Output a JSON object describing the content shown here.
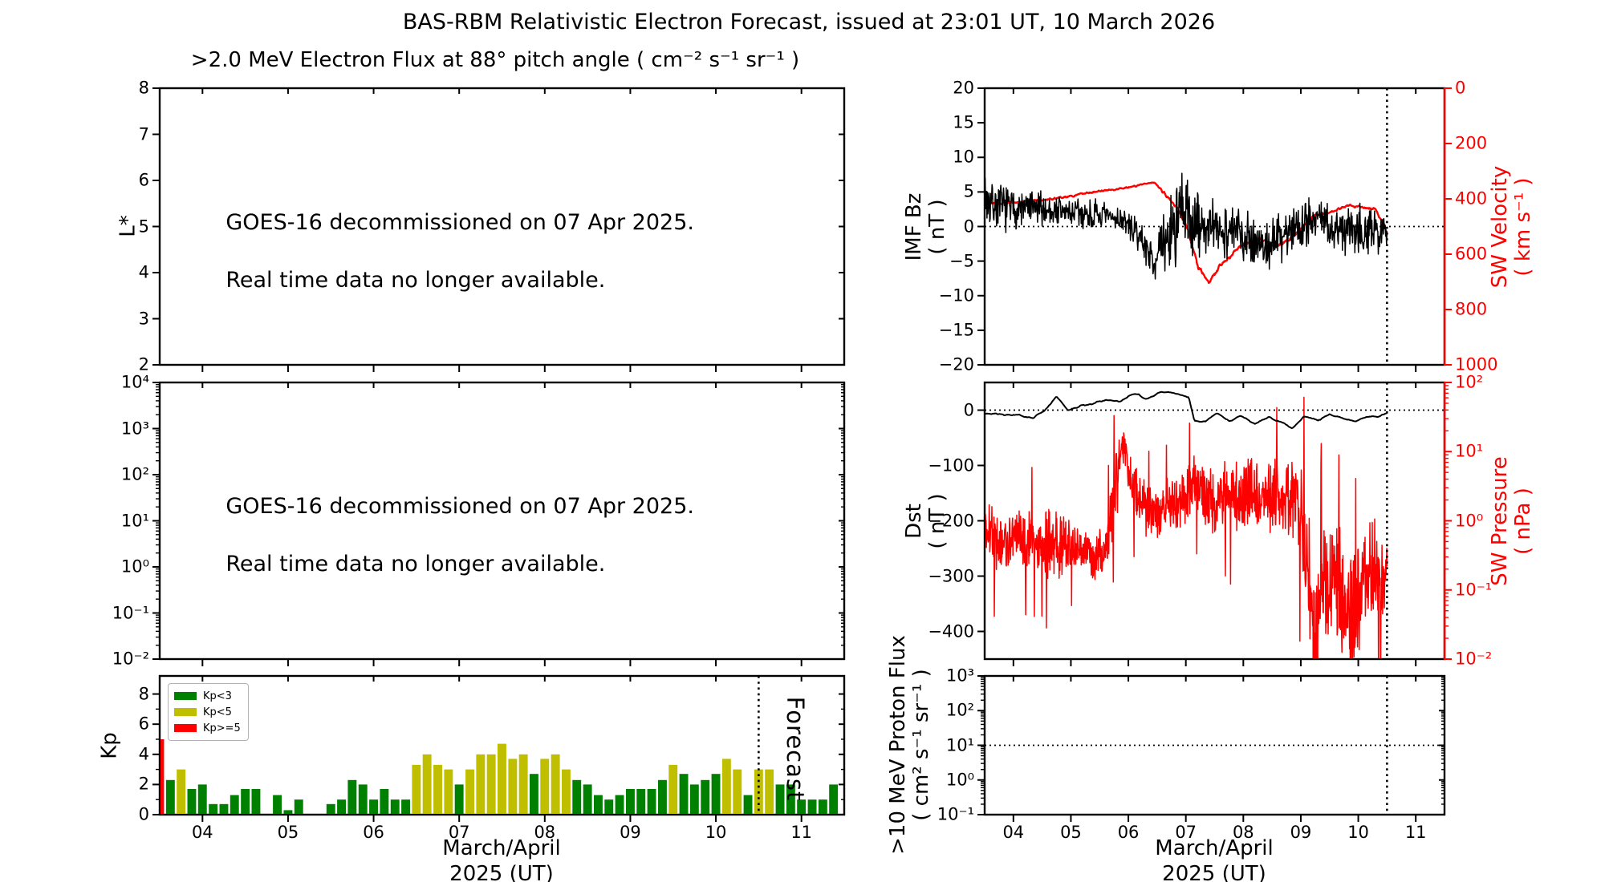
{
  "title": "BAS-RBM Relativistic Electron Forecast, issued at 23:01 UT, 10 March 2026",
  "annotation": {
    "line1": "GOES-16 decommissioned on 07 Apr 2025.",
    "line2": "Real time data no longer available."
  },
  "colors": {
    "black": "#000000",
    "red": "#ff0000",
    "kp_green": "#008000",
    "kp_yellow": "#bfbf00",
    "forecast_gray": "#c6c6c6",
    "background": "#ffffff"
  },
  "chart_data": {
    "x_axis": {
      "range": [
        3.5,
        11.5
      ],
      "tick_days": [
        4,
        5,
        6,
        7,
        8,
        9,
        10,
        11
      ],
      "tick_labels": [
        "04",
        "05",
        "06",
        "07",
        "08",
        "09",
        "10",
        "11"
      ],
      "label": "March/April\n2025 (UT)"
    },
    "forecast": {
      "label": "Forecast",
      "boundary_day": 10.5
    },
    "panels": {
      "electron_flux": {
        "type": "line",
        "subtitle": ">2.0 MeV Electron Flux at 88° pitch angle ( cm⁻² s⁻¹ sr⁻¹ )",
        "ylabel": "L*",
        "ylim": [
          2,
          8
        ],
        "yticks": [
          8,
          7,
          6,
          5,
          4,
          3,
          2
        ],
        "ytick_labels": [
          "8",
          "7",
          "6",
          "5",
          "4",
          "3",
          "2"
        ],
        "series": []
      },
      "electron_flux_log": {
        "type": "line",
        "ylim_exp": [
          -2,
          4
        ],
        "ytick_exps": [
          4,
          3,
          2,
          1,
          0,
          -1,
          -2
        ],
        "ytick_labels": [
          "10⁴",
          "10³",
          "10²",
          "10¹",
          "10⁰",
          "10⁻¹",
          "10⁻²"
        ],
        "series": []
      },
      "kp": {
        "type": "bar",
        "ylabel": "Kp",
        "ylim": [
          0,
          9.2
        ],
        "yticks": [
          8,
          6,
          4,
          2,
          0
        ],
        "ytick_labels": [
          "8",
          "6",
          "4",
          "2",
          "0"
        ],
        "yticks_minor": [
          1,
          3,
          5,
          7
        ],
        "legend": [
          {
            "label": "Kp<3",
            "color": "#008000"
          },
          {
            "label": "Kp<5",
            "color": "#bfbf00"
          },
          {
            "label": "Kp>=5",
            "color": "#ff0000"
          }
        ],
        "thresholds": {
          "yellow_min": 3,
          "red_min": 5
        },
        "bars": {
          "start_day": 3.5,
          "step_days": 0.125,
          "values": [
            5.0,
            2.3,
            3.0,
            1.7,
            2.0,
            0.7,
            0.7,
            1.3,
            1.7,
            1.7,
            0,
            1.3,
            0.3,
            1.0,
            0,
            0,
            0.7,
            1.0,
            2.3,
            2.0,
            1.0,
            1.7,
            1.0,
            1.0,
            3.3,
            4.0,
            3.3,
            3.0,
            2.0,
            3.0,
            4.0,
            4.0,
            4.7,
            3.7,
            4.0,
            2.7,
            3.7,
            4.0,
            3.0,
            2.3,
            2.0,
            1.3,
            1.0,
            1.3,
            1.7,
            1.7,
            1.7,
            2.3,
            3.3,
            2.7,
            2.0,
            2.3,
            2.7,
            3.7,
            3.0,
            1.3,
            3.0,
            3.0,
            2.0,
            2.0,
            1.0,
            1.0,
            1.0,
            2.0
          ]
        }
      },
      "imf": {
        "type": "line",
        "ylabel": "IMF Bz\n( nT )",
        "ylim": [
          -20,
          20
        ],
        "yticks": [
          20,
          15,
          10,
          5,
          0,
          -5,
          -10,
          -15,
          -20
        ],
        "ytick_labels": [
          "20",
          "15",
          "10",
          "5",
          "0",
          "−5",
          "−10",
          "−15",
          "−20"
        ],
        "hline": 0,
        "y2label": "SW Velocity\n( km s⁻¹ )",
        "y2lim": [
          0,
          1000
        ],
        "y2ticks": [
          1000,
          800,
          600,
          400,
          200,
          0
        ],
        "y2tick_labels": [
          "1000",
          "800",
          "600",
          "400",
          "200",
          "0"
        ],
        "bz_control_points_day_mean_amp": [
          [
            3.5,
            4.0,
            4.5
          ],
          [
            3.7,
            3.0,
            4.0
          ],
          [
            4.0,
            2.5,
            3.5
          ],
          [
            4.5,
            2.5,
            3.0
          ],
          [
            5.0,
            2.0,
            3.0
          ],
          [
            5.5,
            1.5,
            2.5
          ],
          [
            5.9,
            1.0,
            2.0
          ],
          [
            6.2,
            -1.5,
            2.5
          ],
          [
            6.45,
            -5.0,
            3.0
          ],
          [
            6.6,
            -3.0,
            5.0
          ],
          [
            6.8,
            0.5,
            8.0
          ],
          [
            7.0,
            1.5,
            8.5
          ],
          [
            7.2,
            0.0,
            6.0
          ],
          [
            7.5,
            -0.5,
            5.0
          ],
          [
            7.8,
            -0.5,
            4.5
          ],
          [
            8.1,
            -1.5,
            4.5
          ],
          [
            8.4,
            -3.0,
            4.0
          ],
          [
            8.7,
            -1.0,
            4.5
          ],
          [
            9.0,
            0.5,
            4.5
          ],
          [
            9.3,
            1.5,
            4.5
          ],
          [
            9.6,
            -1.0,
            4.0
          ],
          [
            9.9,
            0.5,
            5.0
          ],
          [
            10.2,
            -1.0,
            4.0
          ],
          [
            10.5,
            -0.5,
            3.0
          ]
        ],
        "velocity_control_points_day_mean_amp": [
          [
            3.5,
            420,
            14
          ],
          [
            4.0,
            415,
            14
          ],
          [
            4.5,
            405,
            12
          ],
          [
            5.0,
            390,
            10
          ],
          [
            5.4,
            375,
            8
          ],
          [
            5.8,
            365,
            8
          ],
          [
            6.1,
            355,
            7
          ],
          [
            6.3,
            345,
            6
          ],
          [
            6.45,
            340,
            6
          ],
          [
            6.6,
            375,
            12
          ],
          [
            6.8,
            420,
            18
          ],
          [
            7.0,
            490,
            22
          ],
          [
            7.2,
            640,
            26
          ],
          [
            7.4,
            700,
            24
          ],
          [
            7.6,
            640,
            22
          ],
          [
            7.8,
            605,
            18
          ],
          [
            8.0,
            565,
            18
          ],
          [
            8.3,
            545,
            16
          ],
          [
            8.6,
            575,
            16
          ],
          [
            8.9,
            530,
            14
          ],
          [
            9.2,
            465,
            12
          ],
          [
            9.5,
            450,
            12
          ],
          [
            9.8,
            425,
            12
          ],
          [
            10.1,
            430,
            12
          ],
          [
            10.3,
            440,
            12
          ],
          [
            10.45,
            495,
            15
          ],
          [
            10.5,
            530,
            8
          ]
        ]
      },
      "dst": {
        "type": "line",
        "ylabel": "Dst\n( nT )",
        "ylim": [
          -450,
          50
        ],
        "yticks": [
          0,
          -100,
          -200,
          -300,
          -400
        ],
        "ytick_labels": [
          "0",
          "−100",
          "−200",
          "−300",
          "−400"
        ],
        "hline": 0,
        "y2label": "SW Pressure\n( nPa )",
        "y2lim_exp": [
          -2,
          2
        ],
        "y2tick_exps": [
          2,
          1,
          0,
          -1,
          -2
        ],
        "y2tick_labels": [
          "10²",
          "10¹",
          "10⁰",
          "10⁻¹",
          "10⁻²"
        ],
        "dst_control_points_day_mean_amp": [
          [
            3.5,
            -5,
            4
          ],
          [
            3.8,
            -8,
            4
          ],
          [
            4.1,
            -10,
            4
          ],
          [
            4.35,
            -15,
            3
          ],
          [
            4.55,
            0,
            3
          ],
          [
            4.75,
            25,
            3
          ],
          [
            4.95,
            0,
            4
          ],
          [
            5.15,
            8,
            4
          ],
          [
            5.4,
            12,
            4
          ],
          [
            5.6,
            18,
            4
          ],
          [
            5.85,
            15,
            4
          ],
          [
            6.1,
            30,
            4
          ],
          [
            6.3,
            20,
            4
          ],
          [
            6.5,
            30,
            3
          ],
          [
            6.7,
            33,
            3
          ],
          [
            6.9,
            28,
            3
          ],
          [
            7.05,
            24,
            3
          ],
          [
            7.15,
            -18,
            4
          ],
          [
            7.35,
            -20,
            4
          ],
          [
            7.55,
            -5,
            3
          ],
          [
            7.75,
            -20,
            4
          ],
          [
            7.95,
            -10,
            4
          ],
          [
            8.2,
            -25,
            4
          ],
          [
            8.45,
            -12,
            3
          ],
          [
            8.65,
            -22,
            4
          ],
          [
            8.85,
            -33,
            4
          ],
          [
            9.05,
            -12,
            3
          ],
          [
            9.3,
            -18,
            4
          ],
          [
            9.5,
            -8,
            3
          ],
          [
            9.75,
            -15,
            4
          ],
          [
            9.95,
            -20,
            3
          ],
          [
            10.15,
            -12,
            3
          ],
          [
            10.35,
            -12,
            3
          ],
          [
            10.5,
            -5,
            2
          ]
        ],
        "pressure_log10_control_points_day_mean_amp": [
          [
            3.5,
            -0.1,
            0.55
          ],
          [
            3.8,
            -0.35,
            0.6
          ],
          [
            4.1,
            -0.25,
            0.55
          ],
          [
            4.4,
            -0.3,
            0.6
          ],
          [
            4.7,
            -0.35,
            0.65
          ],
          [
            5.0,
            -0.35,
            0.5
          ],
          [
            5.3,
            -0.5,
            0.45
          ],
          [
            5.6,
            -0.45,
            0.5
          ],
          [
            5.8,
            0.6,
            0.7
          ],
          [
            5.92,
            1.1,
            0.35
          ],
          [
            6.05,
            0.5,
            0.5
          ],
          [
            6.3,
            0.15,
            0.5
          ],
          [
            6.55,
            0.1,
            0.45
          ],
          [
            6.75,
            0.3,
            0.5
          ],
          [
            6.95,
            0.2,
            0.6
          ],
          [
            7.15,
            0.55,
            0.55
          ],
          [
            7.35,
            0.35,
            0.6
          ],
          [
            7.55,
            0.2,
            0.55
          ],
          [
            7.75,
            0.45,
            0.65
          ],
          [
            7.95,
            0.3,
            0.6
          ],
          [
            8.15,
            0.5,
            0.65
          ],
          [
            8.35,
            0.2,
            0.6
          ],
          [
            8.55,
            0.45,
            0.7
          ],
          [
            8.75,
            0.35,
            0.65
          ],
          [
            8.95,
            0.3,
            0.8
          ],
          [
            9.1,
            -0.6,
            1.3
          ],
          [
            9.25,
            -1.6,
            1.1
          ],
          [
            9.4,
            -0.9,
            1.1
          ],
          [
            9.55,
            -0.8,
            1.0
          ],
          [
            9.7,
            -1.0,
            1.1
          ],
          [
            9.85,
            -1.5,
            1.1
          ],
          [
            10.0,
            -1.2,
            1.1
          ],
          [
            10.15,
            -0.8,
            1.0
          ],
          [
            10.3,
            -0.7,
            0.9
          ],
          [
            10.42,
            -1.0,
            0.8
          ],
          [
            10.5,
            -0.5,
            0.3
          ]
        ]
      },
      "proton": {
        "type": "line",
        "ylabel": ">10 MeV Proton Flux\n( cm² s⁻¹ sr⁻¹ )",
        "ylim_exp": [
          -1,
          3
        ],
        "ytick_exps": [
          3,
          2,
          1,
          0,
          -1
        ],
        "ytick_labels": [
          "10³",
          "10²",
          "10¹",
          "10⁰",
          "10⁻¹"
        ],
        "hline_exp": 1,
        "series": []
      }
    }
  }
}
